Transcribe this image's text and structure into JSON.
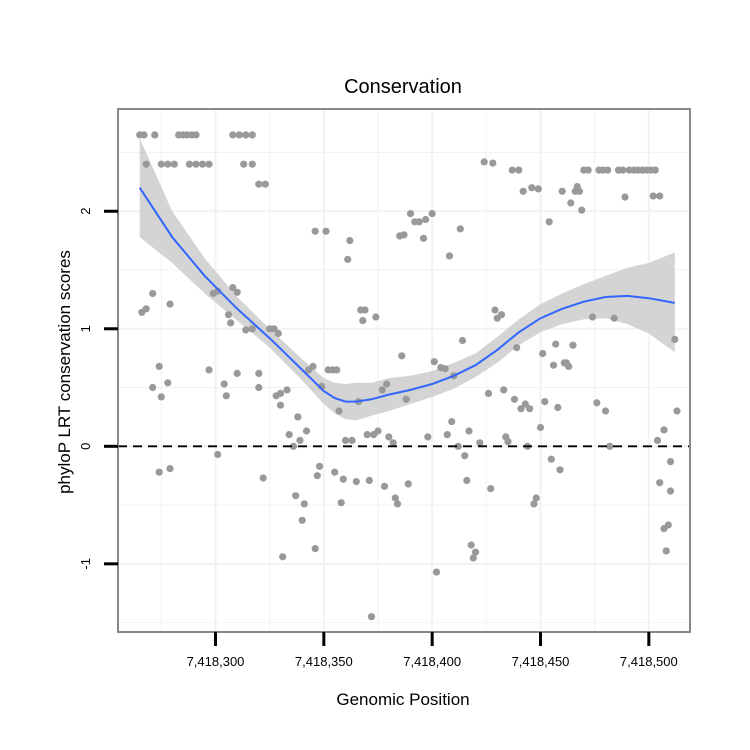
{
  "chart_data": {
    "type": "scatter",
    "title": "Conservation",
    "xlabel": "Genomic Position",
    "ylabel": "phyloP LRT conservation scores",
    "xlim": [
      7418255,
      7418519
    ],
    "ylim": [
      -1.58,
      2.87
    ],
    "x_ticks": [
      {
        "value": 7418300,
        "label": "7,418,300"
      },
      {
        "value": 7418350,
        "label": "7,418,350"
      },
      {
        "value": 7418400,
        "label": "7,418,400"
      },
      {
        "value": 7418450,
        "label": "7,418,450"
      },
      {
        "value": 7418500,
        "label": "7,418,500"
      }
    ],
    "y_ticks": [
      {
        "value": -1,
        "label": "-1"
      },
      {
        "value": 0,
        "label": "0"
      },
      {
        "value": 1,
        "label": "1"
      },
      {
        "value": 2,
        "label": "2"
      }
    ],
    "grid": true,
    "reference_line": {
      "y": 0,
      "style": "dashed"
    },
    "colors": {
      "points": "#999999",
      "smooth": "#3366ff",
      "band": "#cccccc",
      "panel_border": "#888888",
      "grid": "#f2f2f2"
    },
    "points": [
      [
        7418265,
        2.65
      ],
      [
        7418267,
        2.65
      ],
      [
        7418268,
        2.4
      ],
      [
        7418266,
        1.14
      ],
      [
        7418268,
        1.17
      ],
      [
        7418271,
        1.3
      ],
      [
        7418271,
        0.5
      ],
      [
        7418274,
        0.68
      ],
      [
        7418275,
        0.42
      ],
      [
        7418274,
        -0.22
      ],
      [
        7418278,
        0.54
      ],
      [
        7418279,
        1.21
      ],
      [
        7418279,
        -0.19
      ],
      [
        7418272,
        2.65
      ],
      [
        7418275,
        2.4
      ],
      [
        7418278,
        2.4
      ],
      [
        7418281,
        2.4
      ],
      [
        7418283,
        2.65
      ],
      [
        7418285,
        2.65
      ],
      [
        7418287,
        2.65
      ],
      [
        7418289,
        2.65
      ],
      [
        7418291,
        2.65
      ],
      [
        7418288,
        2.4
      ],
      [
        7418291,
        2.4
      ],
      [
        7418294,
        2.4
      ],
      [
        7418297,
        2.4
      ],
      [
        7418297,
        0.65
      ],
      [
        7418299,
        1.3
      ],
      [
        7418301,
        1.32
      ],
      [
        7418301,
        -0.07
      ],
      [
        7418304,
        0.53
      ],
      [
        7418305,
        0.43
      ],
      [
        7418306,
        1.12
      ],
      [
        7418307,
        1.05
      ],
      [
        7418308,
        1.35
      ],
      [
        7418310,
        1.31
      ],
      [
        7418310,
        0.62
      ],
      [
        7418308,
        2.65
      ],
      [
        7418311,
        2.65
      ],
      [
        7418314,
        2.65
      ],
      [
        7418317,
        2.65
      ],
      [
        7418313,
        2.4
      ],
      [
        7418317,
        2.4
      ],
      [
        7418320,
        2.23
      ],
      [
        7418323,
        2.23
      ],
      [
        7418314,
        0.99
      ],
      [
        7418317,
        1.0
      ],
      [
        7418320,
        0.62
      ],
      [
        7418320,
        0.5
      ],
      [
        7418322,
        -0.27
      ],
      [
        7418325,
        1.0
      ],
      [
        7418327,
        1.0
      ],
      [
        7418328,
        0.43
      ],
      [
        7418329,
        0.96
      ],
      [
        7418330,
        0.45
      ],
      [
        7418330,
        0.35
      ],
      [
        7418331,
        -0.94
      ],
      [
        7418333,
        0.48
      ],
      [
        7418334,
        0.1
      ],
      [
        7418336,
        0.0
      ],
      [
        7418337,
        -0.42
      ],
      [
        7418338,
        0.25
      ],
      [
        7418339,
        0.05
      ],
      [
        7418340,
        -0.63
      ],
      [
        7418341,
        -0.49
      ],
      [
        7418342,
        0.13
      ],
      [
        7418343,
        0.65
      ],
      [
        7418345,
        0.68
      ],
      [
        7418346,
        -0.87
      ],
      [
        7418347,
        -0.25
      ],
      [
        7418348,
        -0.17
      ],
      [
        7418349,
        0.51
      ],
      [
        7418346,
        1.83
      ],
      [
        7418351,
        1.83
      ],
      [
        7418352,
        0.65
      ],
      [
        7418354,
        0.65
      ],
      [
        7418356,
        0.65
      ],
      [
        7418355,
        -0.22
      ],
      [
        7418357,
        0.3
      ],
      [
        7418358,
        -0.48
      ],
      [
        7418359,
        -0.28
      ],
      [
        7418360,
        0.05
      ],
      [
        7418361,
        1.59
      ],
      [
        7418362,
        1.75
      ],
      [
        7418363,
        0.05
      ],
      [
        7418365,
        -0.3
      ],
      [
        7418366,
        0.38
      ],
      [
        7418367,
        1.16
      ],
      [
        7418368,
        1.07
      ],
      [
        7418369,
        1.16
      ],
      [
        7418370,
        0.1
      ],
      [
        7418371,
        -0.29
      ],
      [
        7418372,
        -1.45
      ],
      [
        7418373,
        0.1
      ],
      [
        7418374,
        1.1
      ],
      [
        7418375,
        0.13
      ],
      [
        7418377,
        0.48
      ],
      [
        7418378,
        -0.34
      ],
      [
        7418379,
        0.53
      ],
      [
        7418380,
        0.08
      ],
      [
        7418382,
        0.03
      ],
      [
        7418383,
        -0.44
      ],
      [
        7418384,
        -0.49
      ],
      [
        7418385,
        1.79
      ],
      [
        7418386,
        0.77
      ],
      [
        7418387,
        1.8
      ],
      [
        7418388,
        0.4
      ],
      [
        7418389,
        -0.32
      ],
      [
        7418390,
        1.98
      ],
      [
        7418392,
        1.91
      ],
      [
        7418394,
        1.91
      ],
      [
        7418396,
        1.77
      ],
      [
        7418397,
        1.93
      ],
      [
        7418398,
        0.08
      ],
      [
        7418400,
        1.98
      ],
      [
        7418401,
        0.72
      ],
      [
        7418402,
        -1.07
      ],
      [
        7418404,
        0.67
      ],
      [
        7418406,
        0.66
      ],
      [
        7418407,
        0.1
      ],
      [
        7418408,
        1.62
      ],
      [
        7418409,
        0.21
      ],
      [
        7418410,
        0.6
      ],
      [
        7418412,
        0.0
      ],
      [
        7418413,
        1.85
      ],
      [
        7418414,
        0.9
      ],
      [
        7418415,
        -0.08
      ],
      [
        7418416,
        -0.29
      ],
      [
        7418417,
        0.13
      ],
      [
        7418418,
        -0.84
      ],
      [
        7418419,
        -0.95
      ],
      [
        7418420,
        -0.9
      ],
      [
        7418422,
        0.03
      ],
      [
        7418424,
        2.42
      ],
      [
        7418426,
        0.45
      ],
      [
        7418427,
        -0.36
      ],
      [
        7418428,
        2.41
      ],
      [
        7418429,
        1.16
      ],
      [
        7418430,
        1.09
      ],
      [
        7418432,
        1.12
      ],
      [
        7418433,
        0.48
      ],
      [
        7418434,
        0.08
      ],
      [
        7418435,
        0.04
      ],
      [
        7418437,
        2.35
      ],
      [
        7418438,
        0.4
      ],
      [
        7418439,
        0.84
      ],
      [
        7418440,
        2.35
      ],
      [
        7418441,
        0.32
      ],
      [
        7418442,
        2.17
      ],
      [
        7418443,
        0.36
      ],
      [
        7418444,
        0.0
      ],
      [
        7418445,
        0.32
      ],
      [
        7418446,
        2.2
      ],
      [
        7418447,
        -0.49
      ],
      [
        7418448,
        -0.44
      ],
      [
        7418449,
        2.19
      ],
      [
        7418450,
        0.16
      ],
      [
        7418451,
        0.79
      ],
      [
        7418452,
        0.38
      ],
      [
        7418454,
        1.91
      ],
      [
        7418455,
        -0.11
      ],
      [
        7418456,
        0.69
      ],
      [
        7418457,
        0.87
      ],
      [
        7418458,
        0.33
      ],
      [
        7418459,
        -0.2
      ],
      [
        7418460,
        2.17
      ],
      [
        7418461,
        0.71
      ],
      [
        7418462,
        0.71
      ],
      [
        7418463,
        0.68
      ],
      [
        7418464,
        2.07
      ],
      [
        7418465,
        0.86
      ],
      [
        7418466,
        2.17
      ],
      [
        7418467,
        2.21
      ],
      [
        7418468,
        2.17
      ],
      [
        7418469,
        2.01
      ],
      [
        7418470,
        2.35
      ],
      [
        7418472,
        2.35
      ],
      [
        7418474,
        1.1
      ],
      [
        7418476,
        0.37
      ],
      [
        7418477,
        2.35
      ],
      [
        7418479,
        2.35
      ],
      [
        7418480,
        0.3
      ],
      [
        7418481,
        2.35
      ],
      [
        7418482,
        0.0
      ],
      [
        7418484,
        1.09
      ],
      [
        7418486,
        2.35
      ],
      [
        7418488,
        2.35
      ],
      [
        7418489,
        2.12
      ],
      [
        7418491,
        2.35
      ],
      [
        7418493,
        2.35
      ],
      [
        7418495,
        2.35
      ],
      [
        7418497,
        2.35
      ],
      [
        7418499,
        2.35
      ],
      [
        7418501,
        2.35
      ],
      [
        7418503,
        2.35
      ],
      [
        7418502,
        2.13
      ],
      [
        7418505,
        2.13
      ],
      [
        7418504,
        0.05
      ],
      [
        7418505,
        -0.31
      ],
      [
        7418507,
        -0.7
      ],
      [
        7418507,
        0.14
      ],
      [
        7418508,
        -0.89
      ],
      [
        7418509,
        -0.67
      ],
      [
        7418510,
        -0.38
      ],
      [
        7418510,
        -0.13
      ],
      [
        7418512,
        0.91
      ],
      [
        7418513,
        0.3
      ]
    ],
    "smooth": {
      "x": [
        7418265,
        7418280,
        7418295,
        7418310,
        7418325,
        7418340,
        7418350,
        7418355,
        7418360,
        7418365,
        7418372,
        7418380,
        7418390,
        7418400,
        7418410,
        7418420,
        7418430,
        7418440,
        7418450,
        7418460,
        7418470,
        7418480,
        7418490,
        7418500,
        7418512
      ],
      "y": [
        2.2,
        1.78,
        1.45,
        1.17,
        0.92,
        0.65,
        0.47,
        0.41,
        0.38,
        0.38,
        0.4,
        0.44,
        0.48,
        0.53,
        0.6,
        0.69,
        0.82,
        0.97,
        1.09,
        1.17,
        1.23,
        1.27,
        1.28,
        1.26,
        1.22
      ],
      "lower": [
        1.78,
        1.56,
        1.3,
        1.07,
        0.84,
        0.56,
        0.36,
        0.28,
        0.23,
        0.22,
        0.26,
        0.3,
        0.36,
        0.42,
        0.49,
        0.59,
        0.71,
        0.86,
        0.97,
        1.04,
        1.08,
        1.09,
        1.04,
        0.96,
        0.8
      ],
      "upper": [
        2.62,
        2.0,
        1.6,
        1.27,
        1.0,
        0.74,
        0.58,
        0.54,
        0.53,
        0.54,
        0.54,
        0.58,
        0.6,
        0.64,
        0.71,
        0.79,
        0.93,
        1.08,
        1.21,
        1.3,
        1.38,
        1.45,
        1.52,
        1.56,
        1.65
      ]
    }
  }
}
